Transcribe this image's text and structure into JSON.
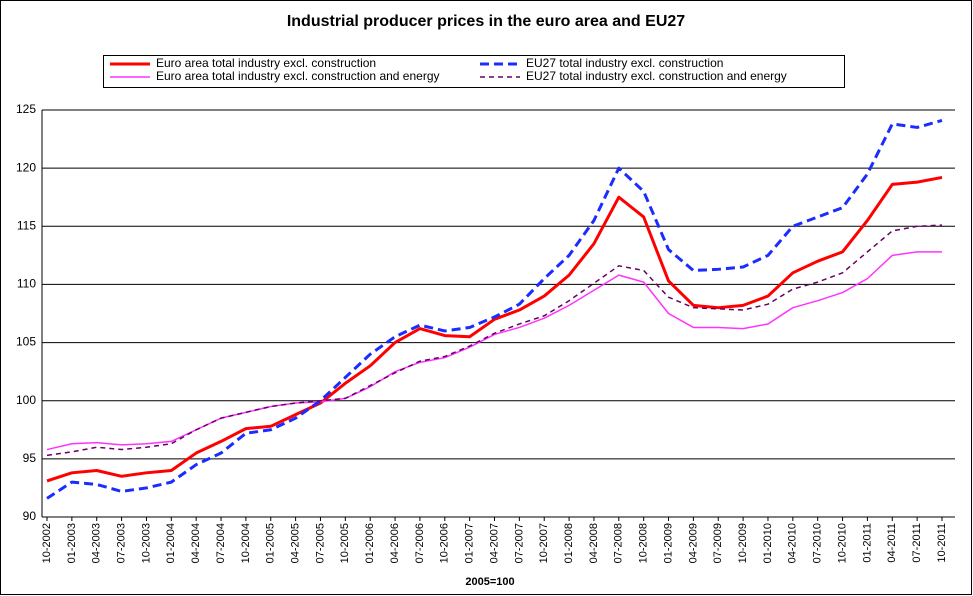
{
  "chart_data": {
    "type": "line",
    "title": "Industrial producer prices in the euro area and EU27",
    "x_label": "2005=100",
    "categories": [
      "10-2002",
      "01-2003",
      "04-2003",
      "07-2003",
      "10-2003",
      "01-2004",
      "04-2004",
      "07-2004",
      "10-2004",
      "01-2005",
      "04-2005",
      "07-2005",
      "10-2005",
      "01-2006",
      "04-2006",
      "07-2006",
      "10-2006",
      "01-2007",
      "04-2007",
      "07-2007",
      "10-2007",
      "01-2008",
      "04-2008",
      "07-2008",
      "10-2008",
      "01-2009",
      "04-2009",
      "07-2009",
      "10-2009",
      "01-2010",
      "04-2010",
      "07-2010",
      "10-2010",
      "01-2011",
      "04-2011",
      "07-2011",
      "10-2011"
    ],
    "series": [
      {
        "name": "Euro area total industry excl. construction",
        "color": "#ff0000",
        "dashed": false,
        "values": [
          93.1,
          93.8,
          94.0,
          93.5,
          93.8,
          94.0,
          95.5,
          96.5,
          97.6,
          97.8,
          98.8,
          99.8,
          101.5,
          103.0,
          105.0,
          106.2,
          105.6,
          105.5,
          107.0,
          107.8,
          109.0,
          110.8,
          113.5,
          117.5,
          115.8,
          110.3,
          108.2,
          108.0,
          108.2,
          109.0,
          111.0,
          112.0,
          112.8,
          115.5,
          118.6,
          118.8,
          119.2
        ]
      },
      {
        "name": "Euro area total industry excl. construction and energy",
        "color": "#ff33ff",
        "dashed": false,
        "values": [
          95.8,
          96.3,
          96.4,
          96.2,
          96.3,
          96.5,
          97.5,
          98.5,
          99.0,
          99.5,
          99.8,
          99.9,
          100.2,
          101.2,
          102.5,
          103.3,
          103.7,
          104.6,
          105.7,
          106.3,
          107.1,
          108.2,
          109.5,
          110.8,
          110.2,
          107.5,
          106.3,
          106.3,
          106.2,
          106.6,
          108.0,
          108.6,
          109.3,
          110.5,
          112.5,
          112.8,
          112.8
        ]
      },
      {
        "name": "EU27 total industry excl. construction",
        "color": "#1a2cff",
        "dashed": true,
        "values": [
          91.6,
          93.0,
          92.8,
          92.2,
          92.5,
          93.0,
          94.5,
          95.5,
          97.2,
          97.5,
          98.5,
          100.0,
          102.0,
          104.0,
          105.5,
          106.5,
          106.0,
          106.3,
          107.2,
          108.3,
          110.5,
          112.5,
          115.5,
          120.0,
          118.0,
          113.0,
          111.2,
          111.3,
          111.5,
          112.5,
          115.0,
          115.8,
          116.6,
          119.5,
          123.8,
          123.5,
          124.1
        ]
      },
      {
        "name": "EU27 total industry excl. construction and energy",
        "color": "#660066",
        "dashed": true,
        "values": [
          95.3,
          95.6,
          96.0,
          95.8,
          96.0,
          96.3,
          97.5,
          98.5,
          99.0,
          99.5,
          99.8,
          100.0,
          100.2,
          101.3,
          102.4,
          103.4,
          103.8,
          104.7,
          105.8,
          106.6,
          107.3,
          108.6,
          110.1,
          111.6,
          111.2,
          108.9,
          108.0,
          107.9,
          107.8,
          108.3,
          109.6,
          110.2,
          111.0,
          112.8,
          114.6,
          115.0,
          115.1
        ]
      }
    ],
    "ylim": [
      90,
      125
    ],
    "yticks": [
      90,
      95,
      100,
      105,
      110,
      115,
      120,
      125
    ],
    "grid": true
  }
}
